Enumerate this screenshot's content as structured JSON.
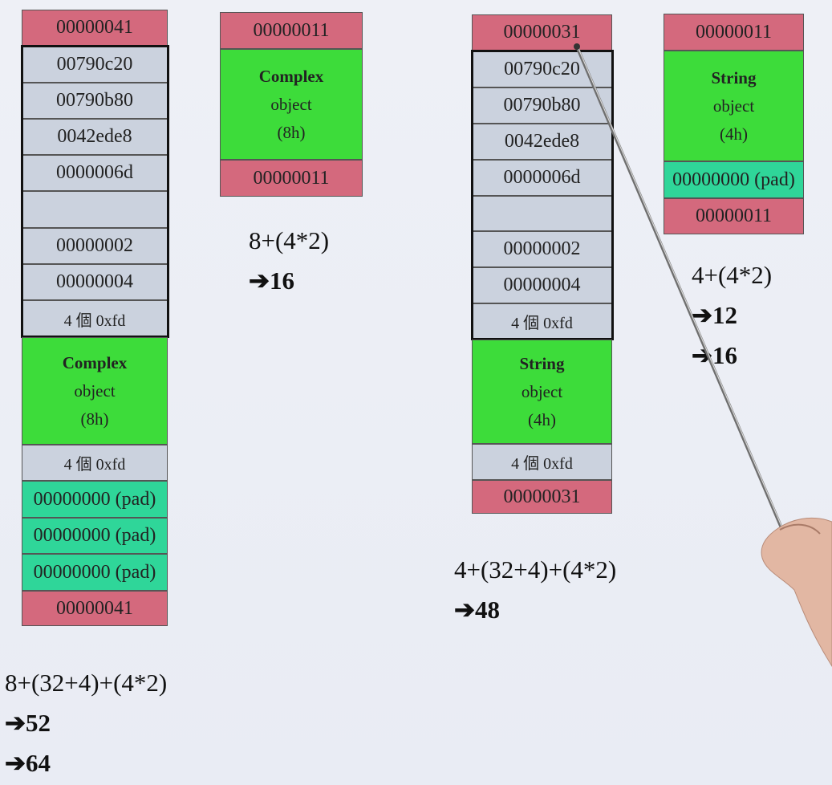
{
  "column1": {
    "header": "00000041",
    "cells": [
      "00790c20",
      "00790b80",
      "0042ede8",
      "0000006d",
      "",
      "00000002",
      "00000004",
      "4 個 0xfd"
    ],
    "object": {
      "name": "Complex",
      "type": "object",
      "size": "(8h)"
    },
    "guard": "4 個 0xfd",
    "pads": [
      "00000000 (pad)",
      "00000000 (pad)",
      "00000000 (pad)"
    ],
    "footer": "00000041",
    "formula": "8+(32+4)+(4*2)",
    "result1": "52",
    "result2": "64"
  },
  "column2": {
    "header": "00000011",
    "object": {
      "name": "Complex",
      "type": "object",
      "size": "(8h)"
    },
    "footer": "00000011",
    "formula": "8+(4*2)",
    "result1": "16"
  },
  "column3": {
    "header": "00000031",
    "cells": [
      "00790c20",
      "00790b80",
      "0042ede8",
      "0000006d",
      "",
      "00000002",
      "00000004",
      "4 個 0xfd"
    ],
    "object": {
      "name": "String",
      "type": "object",
      "size": "(4h)"
    },
    "guard": "4 個 0xfd",
    "footer": "00000031",
    "formula": "4+(32+4)+(4*2)",
    "result1": "48"
  },
  "column4": {
    "header": "00000011",
    "object": {
      "name": "String",
      "type": "object",
      "size": "(4h)"
    },
    "pad": "00000000 (pad)",
    "footer": "00000011",
    "formula": "4+(4*2)",
    "result1": "12",
    "result2": "16"
  },
  "arrow_glyph": "➔",
  "colors": {
    "header": "#d4697d",
    "debug": "#cbd2de",
    "object": "#3ddc3a",
    "pad": "#2fd699"
  }
}
